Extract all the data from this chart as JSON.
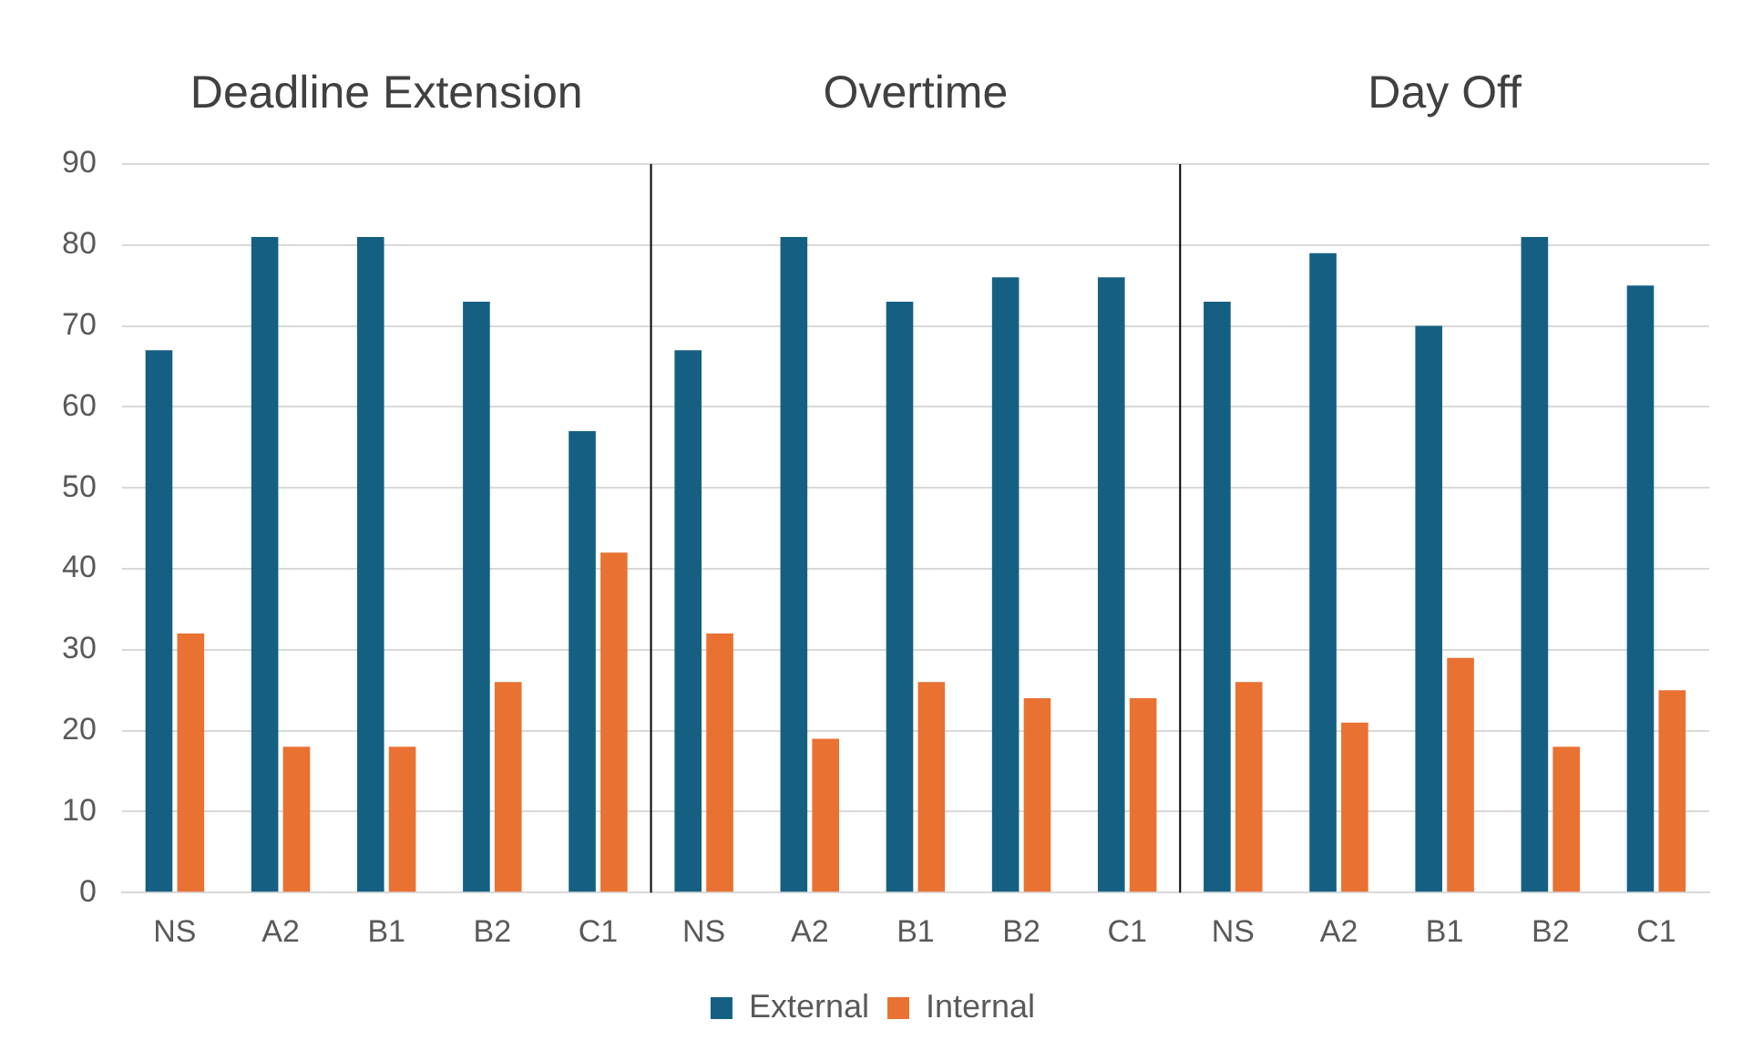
{
  "chart_data": {
    "type": "bar",
    "categories": [
      "NS",
      "A2",
      "B1",
      "B2",
      "C1",
      "NS",
      "A2",
      "B1",
      "B2",
      "C1",
      "NS",
      "A2",
      "B1",
      "B2",
      "C1"
    ],
    "series": [
      {
        "name": "External",
        "color": "#156082",
        "values": [
          67,
          81,
          81,
          73,
          57,
          67,
          81,
          73,
          76,
          76,
          73,
          79,
          70,
          81,
          75
        ]
      },
      {
        "name": "Internal",
        "color": "#e97132",
        "values": [
          32,
          18,
          18,
          26,
          42,
          32,
          19,
          26,
          24,
          24,
          26,
          21,
          29,
          18,
          25
        ]
      }
    ],
    "annotations": [
      "Deadline Extension",
      "Overtime",
      "Day Off"
    ],
    "ylim": [
      0,
      90
    ],
    "yticks": [
      0,
      10,
      20,
      30,
      40,
      50,
      60,
      70,
      80,
      90
    ],
    "grid": "y",
    "legend": "bottom"
  }
}
